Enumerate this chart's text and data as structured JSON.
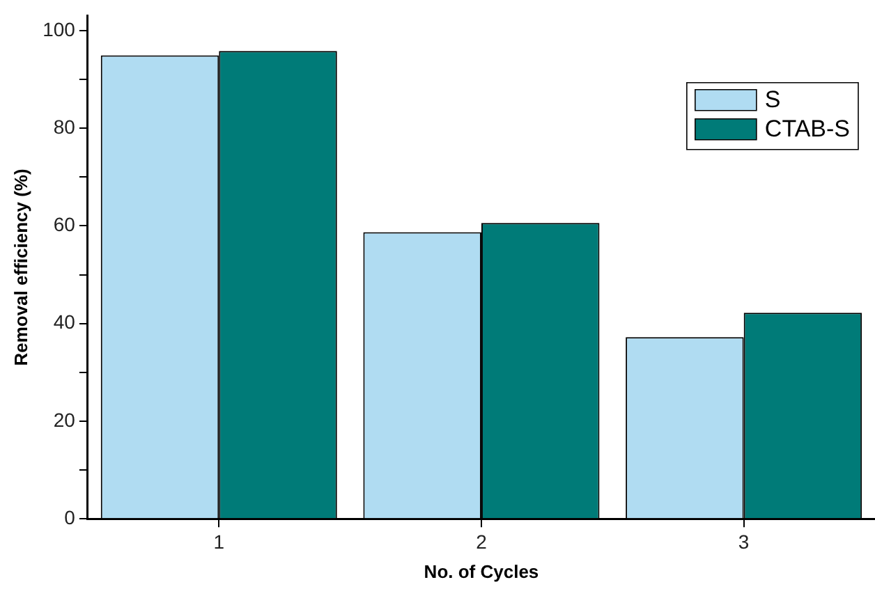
{
  "chart_data": {
    "type": "bar",
    "xlabel": "No. of Cycles",
    "ylabel": "Removal efficiency (%)",
    "categories": [
      "1",
      "2",
      "3"
    ],
    "series": [
      {
        "name": "S",
        "color": "#b0dcf2",
        "values": [
          94.9,
          58.7,
          37.2
        ]
      },
      {
        "name": "CTAB-S",
        "color": "#007b78",
        "values": [
          95.8,
          60.6,
          42.2
        ]
      }
    ],
    "ylim": [
      0,
      103
    ],
    "yticks": [
      0,
      {
        "value": 10,
        "label": null
      },
      20,
      {
        "value": 30,
        "label": null
      },
      40,
      {
        "value": 50,
        "label": null
      },
      60,
      {
        "value": 70,
        "label": null
      },
      80,
      {
        "value": 90,
        "label": null
      },
      100
    ],
    "grid": false,
    "legend": "top right"
  }
}
